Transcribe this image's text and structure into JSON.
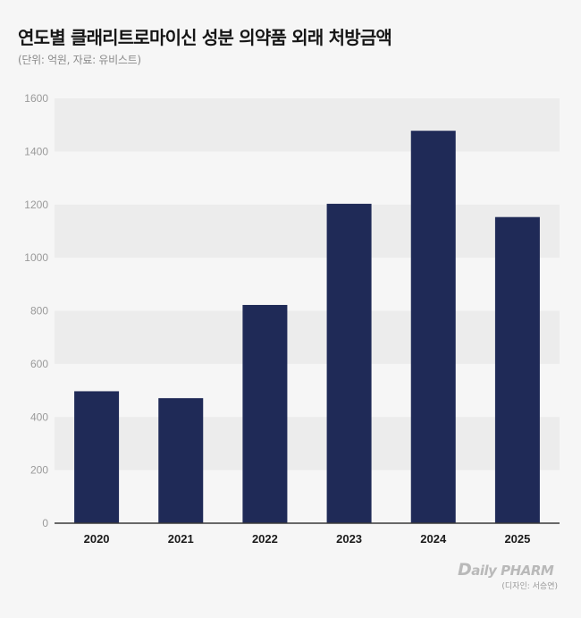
{
  "header": {
    "title": "연도별 클래리트로마이신 성분 의약품 외래 처방금액",
    "subtitle": "(단위: 억원, 자료: 유비스트)"
  },
  "chart_data": {
    "type": "bar",
    "categories": [
      "2020",
      "2021",
      "2022",
      "2023",
      "2024",
      "2025"
    ],
    "values": [
      497,
      471,
      822,
      1203,
      1478,
      1153
    ],
    "series": [
      {
        "name": "외래 처방금액",
        "values": [
          497,
          471,
          822,
          1203,
          1478,
          1153
        ]
      }
    ],
    "title": "연도별 클래리트로마이신 성분 의약품 외래 처방금액",
    "xlabel": "",
    "ylabel": "억원",
    "ylim": [
      0,
      1600
    ],
    "yticks": [
      0,
      200,
      400,
      600,
      800,
      1000,
      1200,
      1400,
      1600
    ],
    "grid": "horizontal-bands",
    "bar_color": "#1f2a57",
    "band_color": "#ececec",
    "legend": "none"
  },
  "branding": {
    "logo_initial": "D",
    "logo_rest": "aily PHARM",
    "credit": "(디자인: 서승연)"
  }
}
